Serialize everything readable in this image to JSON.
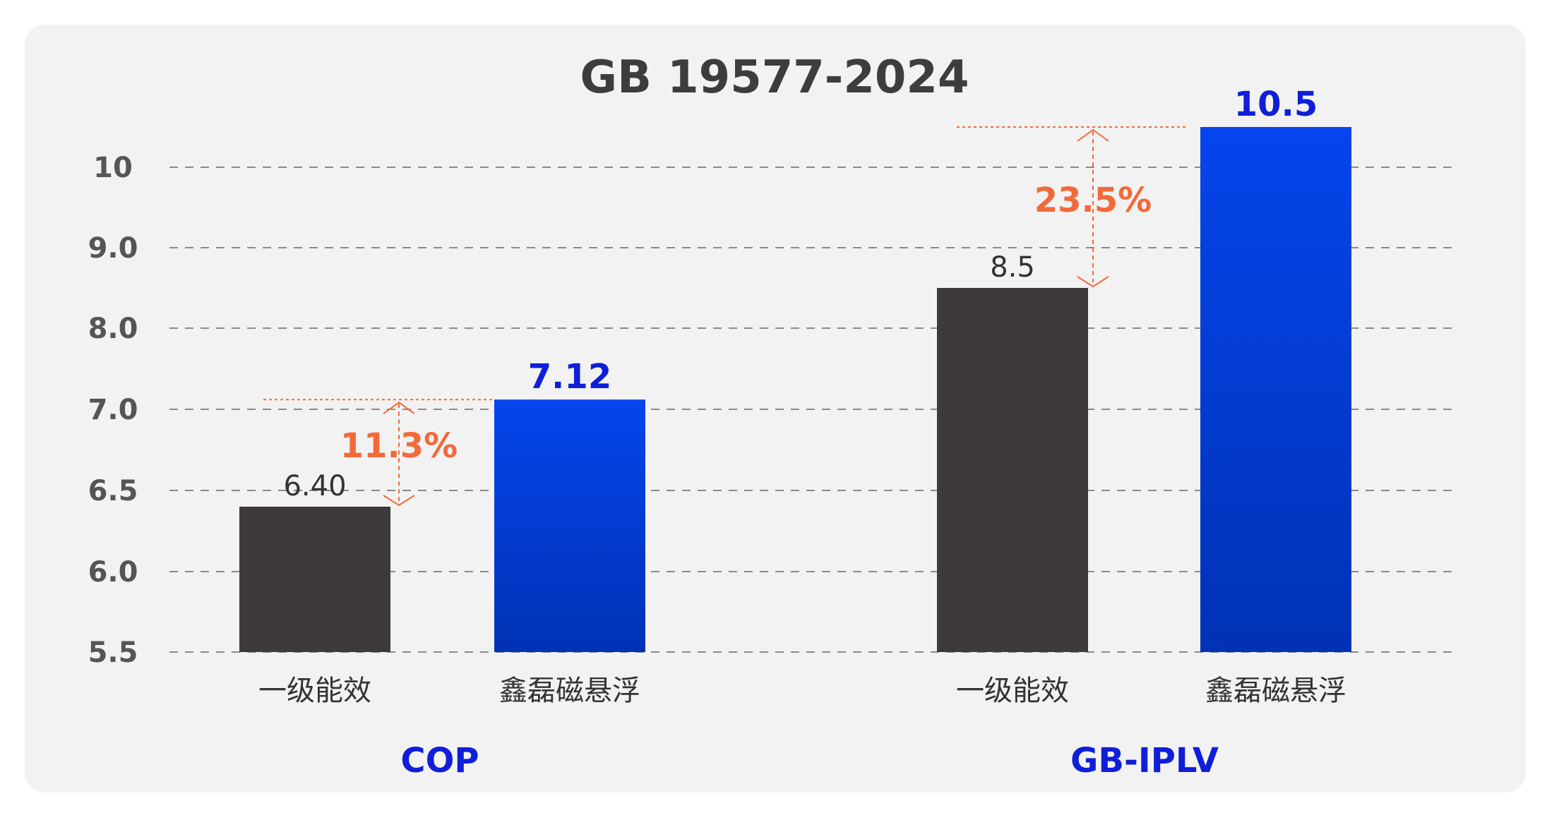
{
  "chart_data": {
    "type": "bar",
    "title": "GB 19577-2024",
    "xlabel": "",
    "ylabel": "",
    "y_ticks": [
      "10",
      "9.0",
      "8.0",
      "7.0",
      "6.5",
      "6.0",
      "5.5"
    ],
    "grid": true,
    "groups": [
      {
        "name": "COP",
        "categories": [
          "一级能效",
          "鑫磊磁悬浮"
        ],
        "values": [
          6.4,
          7.12
        ],
        "value_labels": [
          "6.40",
          "7.12"
        ],
        "improvement": "11.3%"
      },
      {
        "name": "GB-IPLV",
        "categories": [
          "一级能效",
          "鑫磊磁悬浮"
        ],
        "values": [
          8.5,
          10.5
        ],
        "value_labels": [
          "8.5",
          "10.5"
        ],
        "improvement": "23.5%"
      }
    ]
  },
  "colors": {
    "background": "#f2f2f2",
    "baseline_bar": "#3d3a39",
    "highlight_bar_top": "#0545ec",
    "highlight_bar_bottom": "#0032b5",
    "highlight_text": "#0f1fd8",
    "improvement": "#f26a3a",
    "grid": "#8a8a8a"
  }
}
